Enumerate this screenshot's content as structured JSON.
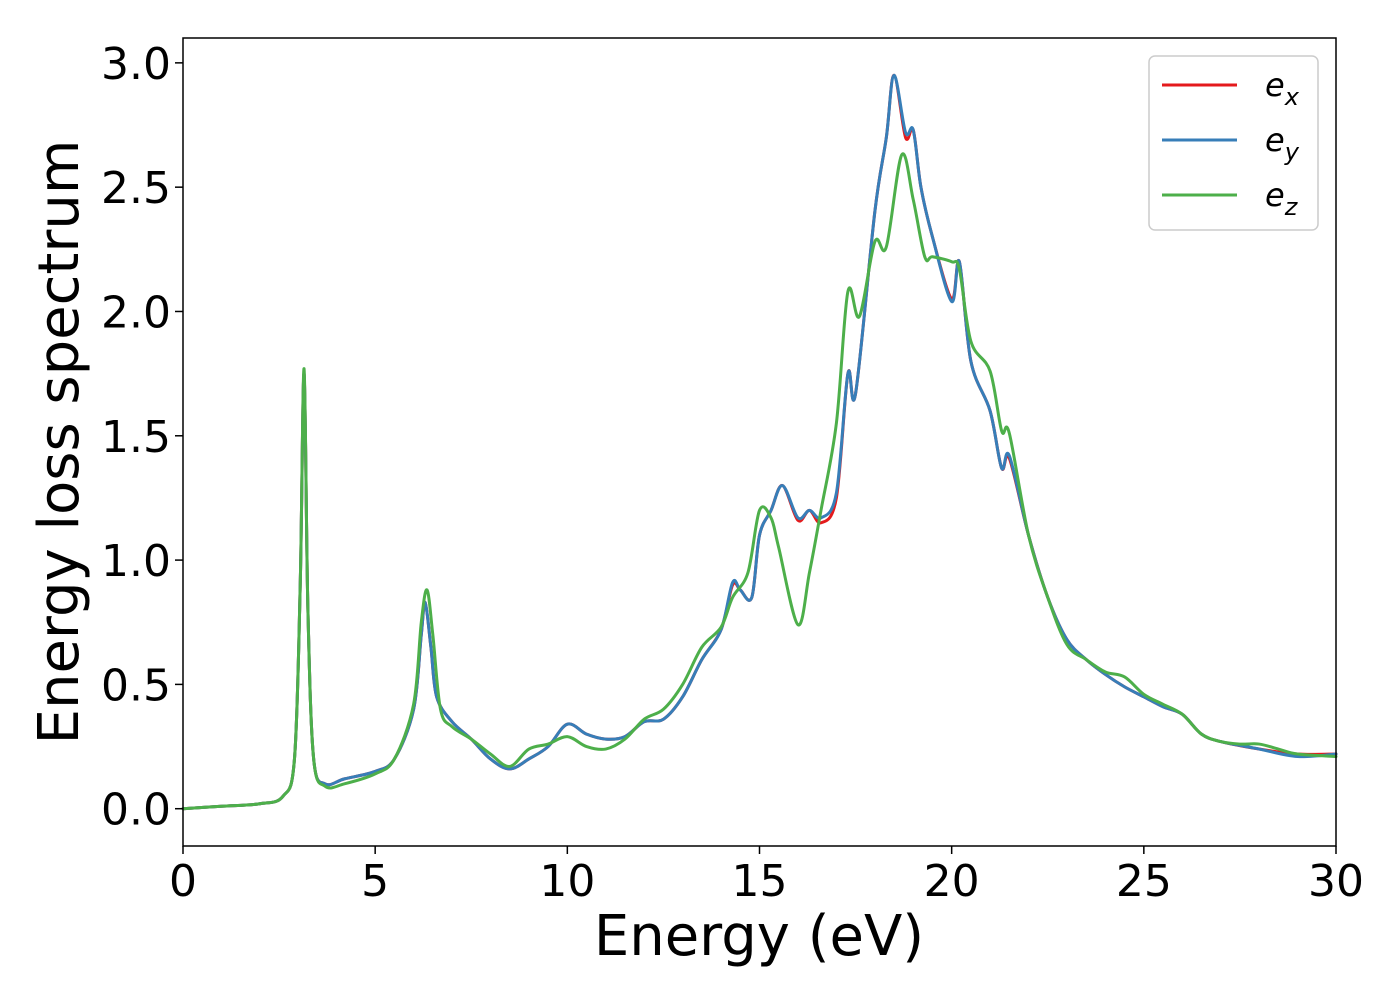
{
  "chart_data": {
    "type": "line",
    "title": "",
    "xlabel": "Energy (eV)",
    "ylabel": "Energy loss spectrum",
    "xlim": [
      0,
      30
    ],
    "ylim": [
      -0.15,
      3.1
    ],
    "x_ticks": [
      0,
      5,
      10,
      15,
      20,
      25,
      30
    ],
    "x_tick_labels": [
      "0",
      "5",
      "10",
      "15",
      "20",
      "25",
      "30"
    ],
    "y_ticks": [
      0.0,
      0.5,
      1.0,
      1.5,
      2.0,
      2.5,
      3.0
    ],
    "y_tick_labels": [
      "0.0",
      "0.5",
      "1.0",
      "1.5",
      "2.0",
      "2.5",
      "3.0"
    ],
    "grid": false,
    "legend_position": "top-right",
    "series": [
      {
        "name": "e_x",
        "legend_base": "e",
        "legend_sub": "x",
        "color": "#e41a1c",
        "points": [
          [
            0,
            0.0
          ],
          [
            1,
            0.01
          ],
          [
            2,
            0.02
          ],
          [
            2.6,
            0.05
          ],
          [
            2.9,
            0.2
          ],
          [
            3.05,
            0.9
          ],
          [
            3.15,
            1.75
          ],
          [
            3.25,
            0.8
          ],
          [
            3.4,
            0.2
          ],
          [
            3.7,
            0.1
          ],
          [
            4.2,
            0.12
          ],
          [
            5,
            0.15
          ],
          [
            5.5,
            0.2
          ],
          [
            6,
            0.4
          ],
          [
            6.2,
            0.7
          ],
          [
            6.3,
            0.83
          ],
          [
            6.45,
            0.65
          ],
          [
            6.6,
            0.45
          ],
          [
            7,
            0.35
          ],
          [
            7.5,
            0.28
          ],
          [
            8,
            0.2
          ],
          [
            8.5,
            0.16
          ],
          [
            9,
            0.2
          ],
          [
            9.5,
            0.25
          ],
          [
            10,
            0.34
          ],
          [
            10.5,
            0.3
          ],
          [
            11,
            0.28
          ],
          [
            11.5,
            0.29
          ],
          [
            12,
            0.35
          ],
          [
            12.5,
            0.36
          ],
          [
            13,
            0.45
          ],
          [
            13.5,
            0.6
          ],
          [
            14,
            0.72
          ],
          [
            14.3,
            0.9
          ],
          [
            14.5,
            0.88
          ],
          [
            14.8,
            0.85
          ],
          [
            15,
            1.1
          ],
          [
            15.3,
            1.2
          ],
          [
            15.6,
            1.3
          ],
          [
            16,
            1.16
          ],
          [
            16.3,
            1.2
          ],
          [
            16.6,
            1.15
          ],
          [
            17,
            1.25
          ],
          [
            17.3,
            1.75
          ],
          [
            17.5,
            1.67
          ],
          [
            18,
            2.4
          ],
          [
            18.3,
            2.7
          ],
          [
            18.5,
            2.95
          ],
          [
            18.8,
            2.7
          ],
          [
            19,
            2.73
          ],
          [
            19.2,
            2.5
          ],
          [
            19.5,
            2.3
          ],
          [
            20,
            2.05
          ],
          [
            20.2,
            2.2
          ],
          [
            20.5,
            1.8
          ],
          [
            21,
            1.6
          ],
          [
            21.3,
            1.37
          ],
          [
            21.5,
            1.41
          ],
          [
            22,
            1.1
          ],
          [
            22.5,
            0.85
          ],
          [
            23,
            0.68
          ],
          [
            23.5,
            0.6
          ],
          [
            24,
            0.54
          ],
          [
            24.5,
            0.49
          ],
          [
            25,
            0.45
          ],
          [
            25.5,
            0.41
          ],
          [
            26,
            0.38
          ],
          [
            26.5,
            0.3
          ],
          [
            27,
            0.27
          ],
          [
            28,
            0.24
          ],
          [
            29,
            0.22
          ],
          [
            30,
            0.22
          ]
        ]
      },
      {
        "name": "e_y",
        "legend_base": "e",
        "legend_sub": "y",
        "color": "#377eb8",
        "points": [
          [
            0,
            0.0
          ],
          [
            1,
            0.01
          ],
          [
            2,
            0.02
          ],
          [
            2.6,
            0.05
          ],
          [
            2.9,
            0.2
          ],
          [
            3.05,
            0.9
          ],
          [
            3.15,
            1.75
          ],
          [
            3.25,
            0.8
          ],
          [
            3.4,
            0.2
          ],
          [
            3.7,
            0.1
          ],
          [
            4.2,
            0.12
          ],
          [
            5,
            0.15
          ],
          [
            5.5,
            0.2
          ],
          [
            6,
            0.4
          ],
          [
            6.2,
            0.7
          ],
          [
            6.3,
            0.83
          ],
          [
            6.45,
            0.65
          ],
          [
            6.6,
            0.45
          ],
          [
            7,
            0.35
          ],
          [
            7.5,
            0.28
          ],
          [
            8,
            0.2
          ],
          [
            8.5,
            0.16
          ],
          [
            9,
            0.2
          ],
          [
            9.5,
            0.25
          ],
          [
            10,
            0.34
          ],
          [
            10.5,
            0.3
          ],
          [
            11,
            0.28
          ],
          [
            11.5,
            0.29
          ],
          [
            12,
            0.35
          ],
          [
            12.5,
            0.36
          ],
          [
            13,
            0.45
          ],
          [
            13.5,
            0.6
          ],
          [
            14,
            0.72
          ],
          [
            14.3,
            0.91
          ],
          [
            14.5,
            0.88
          ],
          [
            14.8,
            0.85
          ],
          [
            15,
            1.1
          ],
          [
            15.3,
            1.2
          ],
          [
            15.6,
            1.3
          ],
          [
            16,
            1.17
          ],
          [
            16.3,
            1.2
          ],
          [
            16.6,
            1.17
          ],
          [
            17,
            1.27
          ],
          [
            17.3,
            1.75
          ],
          [
            17.5,
            1.67
          ],
          [
            18,
            2.4
          ],
          [
            18.3,
            2.7
          ],
          [
            18.5,
            2.95
          ],
          [
            18.8,
            2.72
          ],
          [
            19,
            2.73
          ],
          [
            19.2,
            2.5
          ],
          [
            19.5,
            2.3
          ],
          [
            20,
            2.04
          ],
          [
            20.2,
            2.2
          ],
          [
            20.5,
            1.8
          ],
          [
            21,
            1.6
          ],
          [
            21.3,
            1.37
          ],
          [
            21.5,
            1.42
          ],
          [
            22,
            1.1
          ],
          [
            22.5,
            0.85
          ],
          [
            23,
            0.68
          ],
          [
            23.5,
            0.6
          ],
          [
            24,
            0.54
          ],
          [
            24.5,
            0.49
          ],
          [
            25,
            0.45
          ],
          [
            25.5,
            0.41
          ],
          [
            26,
            0.38
          ],
          [
            26.5,
            0.3
          ],
          [
            27,
            0.27
          ],
          [
            28,
            0.24
          ],
          [
            29,
            0.21
          ],
          [
            30,
            0.22
          ]
        ]
      },
      {
        "name": "e_z",
        "legend_base": "e",
        "legend_sub": "z",
        "color": "#4daf4a",
        "points": [
          [
            0,
            0.0
          ],
          [
            1,
            0.01
          ],
          [
            2,
            0.02
          ],
          [
            2.6,
            0.05
          ],
          [
            2.9,
            0.2
          ],
          [
            3.05,
            0.9
          ],
          [
            3.15,
            1.77
          ],
          [
            3.25,
            0.8
          ],
          [
            3.4,
            0.2
          ],
          [
            3.7,
            0.09
          ],
          [
            4.2,
            0.1
          ],
          [
            5,
            0.14
          ],
          [
            5.5,
            0.2
          ],
          [
            6,
            0.42
          ],
          [
            6.2,
            0.75
          ],
          [
            6.35,
            0.88
          ],
          [
            6.5,
            0.7
          ],
          [
            6.7,
            0.4
          ],
          [
            7,
            0.33
          ],
          [
            7.5,
            0.28
          ],
          [
            8,
            0.22
          ],
          [
            8.5,
            0.17
          ],
          [
            9,
            0.24
          ],
          [
            9.5,
            0.26
          ],
          [
            10,
            0.29
          ],
          [
            10.5,
            0.25
          ],
          [
            11,
            0.24
          ],
          [
            11.5,
            0.28
          ],
          [
            12,
            0.36
          ],
          [
            12.5,
            0.4
          ],
          [
            13,
            0.5
          ],
          [
            13.5,
            0.65
          ],
          [
            14,
            0.73
          ],
          [
            14.3,
            0.85
          ],
          [
            14.7,
            0.95
          ],
          [
            15,
            1.2
          ],
          [
            15.3,
            1.17
          ],
          [
            15.5,
            1.05
          ],
          [
            16,
            0.74
          ],
          [
            16.3,
            0.95
          ],
          [
            16.6,
            1.2
          ],
          [
            17,
            1.55
          ],
          [
            17.3,
            2.08
          ],
          [
            17.6,
            1.98
          ],
          [
            18,
            2.28
          ],
          [
            18.3,
            2.26
          ],
          [
            18.7,
            2.63
          ],
          [
            19,
            2.45
          ],
          [
            19.3,
            2.22
          ],
          [
            19.5,
            2.22
          ],
          [
            20,
            2.2
          ],
          [
            20.2,
            2.17
          ],
          [
            20.5,
            1.88
          ],
          [
            21,
            1.76
          ],
          [
            21.3,
            1.52
          ],
          [
            21.5,
            1.51
          ],
          [
            22,
            1.1
          ],
          [
            22.5,
            0.85
          ],
          [
            23,
            0.66
          ],
          [
            23.5,
            0.6
          ],
          [
            24,
            0.55
          ],
          [
            24.5,
            0.53
          ],
          [
            25,
            0.46
          ],
          [
            25.5,
            0.42
          ],
          [
            26,
            0.38
          ],
          [
            26.5,
            0.3
          ],
          [
            27,
            0.27
          ],
          [
            27.5,
            0.26
          ],
          [
            28,
            0.26
          ],
          [
            28.5,
            0.24
          ],
          [
            29,
            0.22
          ],
          [
            30,
            0.21
          ]
        ]
      }
    ]
  }
}
